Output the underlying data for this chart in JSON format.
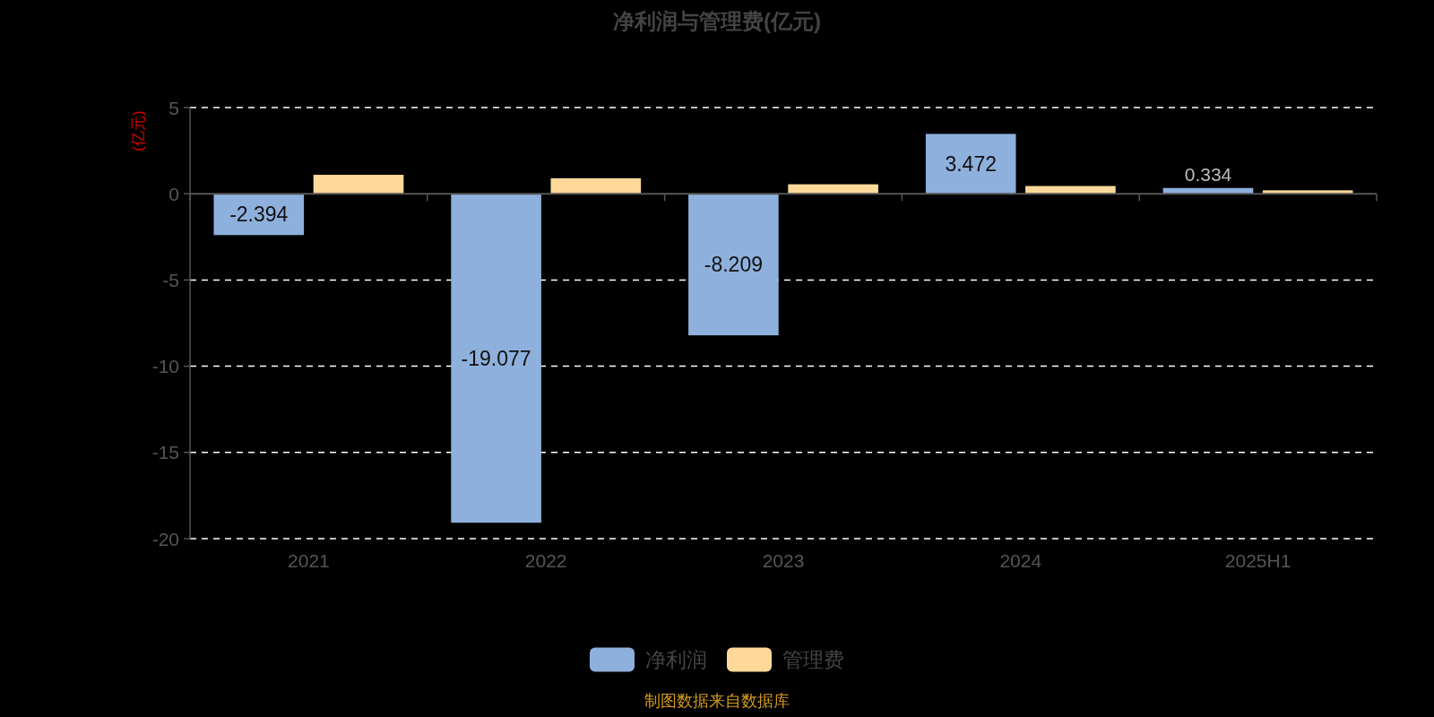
{
  "chart_data": {
    "type": "bar",
    "title": "净利润与管理费(亿元)",
    "ylabel": "(亿元)",
    "categories": [
      "2021",
      "2022",
      "2023",
      "2024",
      "2025H1"
    ],
    "series": [
      {
        "name": "净利润",
        "color": "#8eb0dc",
        "values": [
          -2.394,
          -19.077,
          -8.209,
          3.472,
          0.334
        ],
        "value_labels": [
          "-2.394",
          "-19.077",
          "-8.209",
          "3.472",
          "0.334"
        ]
      },
      {
        "name": "管理费",
        "color": "#ffd999",
        "values": [
          1.1,
          0.9,
          0.55,
          0.45,
          0.2
        ]
      }
    ],
    "ylim": [
      -20,
      5
    ],
    "yticks": [
      -20,
      -15,
      -10,
      -5,
      0,
      5
    ],
    "grid": "y",
    "legend": "bottom",
    "annotations": [
      "制图数据来自数据库"
    ]
  }
}
